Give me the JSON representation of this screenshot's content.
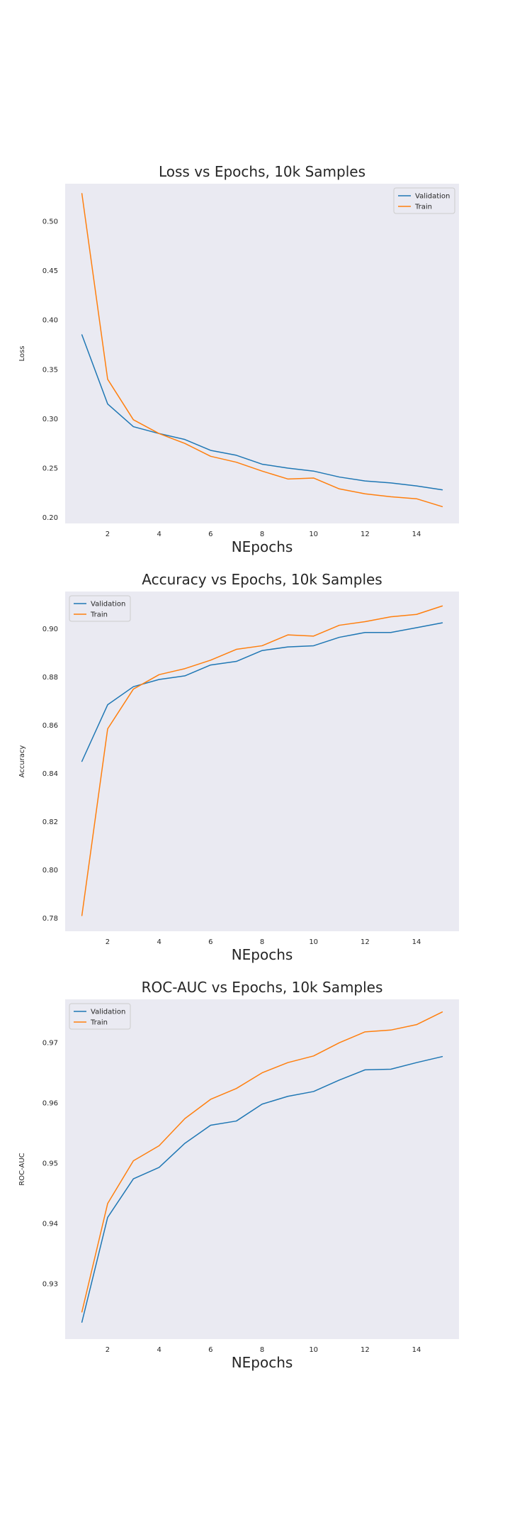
{
  "chart_data": [
    {
      "type": "line",
      "title": "Loss vs Epochs, 10k Samples",
      "xlabel": "NEpochs",
      "ylabel": "Loss",
      "xlim": [
        0.35,
        15.65
      ],
      "ylim": [
        0.194,
        0.538
      ],
      "xticks": [
        2,
        4,
        6,
        8,
        10,
        12,
        14
      ],
      "yticks": [
        0.2,
        0.25,
        0.3,
        0.35,
        0.4,
        0.45,
        0.5
      ],
      "ytick_labels": [
        "0.20",
        "0.25",
        "0.30",
        "0.35",
        "0.40",
        "0.45",
        "0.50"
      ],
      "legend_position": "upper right",
      "grid": false,
      "x": [
        1,
        2,
        3,
        4,
        5,
        6,
        7,
        8,
        9,
        10,
        11,
        12,
        13,
        14,
        15
      ],
      "series": [
        {
          "name": "Validation",
          "color": "#1f77b4",
          "values": [
            0.385,
            0.315,
            0.292,
            0.285,
            0.279,
            0.268,
            0.263,
            0.254,
            0.25,
            0.247,
            0.241,
            0.237,
            0.235,
            0.232,
            0.228
          ]
        },
        {
          "name": "Train",
          "color": "#ff7f0e",
          "values": [
            0.528,
            0.34,
            0.299,
            0.285,
            0.275,
            0.262,
            0.256,
            0.247,
            0.239,
            0.24,
            0.229,
            0.224,
            0.221,
            0.219,
            0.211
          ]
        }
      ]
    },
    {
      "type": "line",
      "title": "Accuracy vs Epochs, 10k Samples",
      "xlabel": "NEpochs",
      "ylabel": "Accuracy",
      "xlim": [
        0.35,
        15.65
      ],
      "ylim": [
        0.7745,
        0.9155
      ],
      "xticks": [
        2,
        4,
        6,
        8,
        10,
        12,
        14
      ],
      "yticks": [
        0.78,
        0.8,
        0.82,
        0.84,
        0.86,
        0.88,
        0.9
      ],
      "ytick_labels": [
        "0.78",
        "0.80",
        "0.82",
        "0.84",
        "0.86",
        "0.88",
        "0.90"
      ],
      "legend_position": "upper left",
      "grid": false,
      "x": [
        1,
        2,
        3,
        4,
        5,
        6,
        7,
        8,
        9,
        10,
        11,
        12,
        13,
        14,
        15
      ],
      "series": [
        {
          "name": "Validation",
          "color": "#1f77b4",
          "values": [
            0.845,
            0.8685,
            0.876,
            0.879,
            0.8805,
            0.885,
            0.8865,
            0.891,
            0.8925,
            0.893,
            0.8965,
            0.8985,
            0.8985,
            0.9005,
            0.9025
          ]
        },
        {
          "name": "Train",
          "color": "#ff7f0e",
          "values": [
            0.781,
            0.8585,
            0.875,
            0.881,
            0.8835,
            0.887,
            0.8915,
            0.893,
            0.8975,
            0.897,
            0.9015,
            0.903,
            0.905,
            0.906,
            0.9095
          ]
        }
      ]
    },
    {
      "type": "line",
      "title": "ROC-AUC vs Epochs, 10k Samples",
      "xlabel": "NEpochs",
      "ylabel": "ROC-AUC",
      "xlim": [
        0.35,
        15.65
      ],
      "ylim": [
        0.9208,
        0.9772
      ],
      "xticks": [
        2,
        4,
        6,
        8,
        10,
        12,
        14
      ],
      "yticks": [
        0.93,
        0.94,
        0.95,
        0.96,
        0.97
      ],
      "ytick_labels": [
        "0.93",
        "0.94",
        "0.95",
        "0.96",
        "0.97"
      ],
      "legend_position": "upper left",
      "grid": false,
      "x": [
        1,
        2,
        3,
        4,
        5,
        6,
        7,
        8,
        9,
        10,
        11,
        12,
        13,
        14,
        15
      ],
      "series": [
        {
          "name": "Validation",
          "color": "#1f77b4",
          "values": [
            0.9236,
            0.941,
            0.9474,
            0.9493,
            0.9533,
            0.9563,
            0.957,
            0.9598,
            0.9611,
            0.9619,
            0.9638,
            0.9655,
            0.9656,
            0.9667,
            0.9677
          ]
        },
        {
          "name": "Train",
          "color": "#ff7f0e",
          "values": [
            0.9253,
            0.9433,
            0.9504,
            0.9529,
            0.9574,
            0.9606,
            0.9624,
            0.965,
            0.9667,
            0.9678,
            0.97,
            0.9718,
            0.9721,
            0.973,
            0.9751
          ]
        }
      ]
    }
  ]
}
